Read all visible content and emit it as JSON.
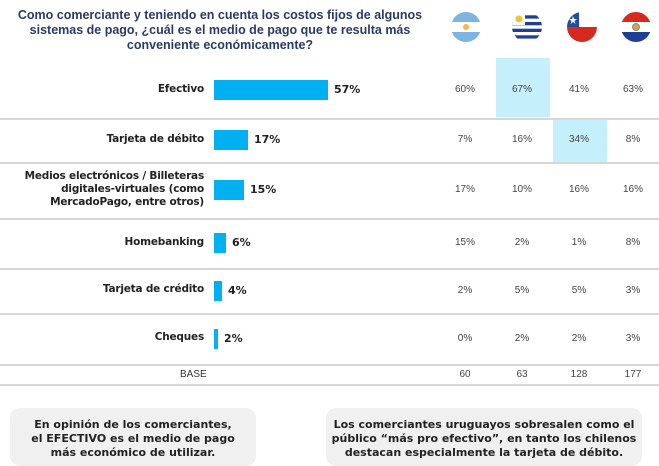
{
  "title": "Como comerciante y teniendo en cuenta los costos fijos de algunos sistemas de pago, ¿cuál es el medio de pago que te resulta       más conveniente económicamente?",
  "title_lines": [
    "Como comerciante y teniendo en cuenta los costos fijos de algunos",
    "sistemas de pago, ¿cuál es el medio de pago que te resulta       más",
    "conveniente económicamente?"
  ],
  "countries": [
    {
      "name": "Argentina",
      "icon": "argentina-flag-icon"
    },
    {
      "name": "Uruguay",
      "icon": "uruguay-flag-icon"
    },
    {
      "name": "Chile",
      "icon": "chile-flag-icon"
    },
    {
      "name": "Paraguay",
      "icon": "paraguay-flag-icon"
    }
  ],
  "colors": {
    "bar": "#00b0f0",
    "highlight": "#c5effb",
    "title": "#2b3a67"
  },
  "chart_data": {
    "type": "bar",
    "orientation": "horizontal",
    "title": "Como comerciante y teniendo en cuenta los costos fijos de algunos sistemas de pago, ¿cuál es el medio de pago que te resulta más conveniente económicamente?",
    "categories": [
      [
        "Efectivo"
      ],
      [
        "Tarjeta de débito"
      ],
      [
        "Medios electrónicos / Billeteras",
        "digitales-virtuales (como",
        "MercadoPago, entre otros)"
      ],
      [
        "Homebanking"
      ],
      [
        "Tarjeta de crédito"
      ],
      [
        "Cheques"
      ]
    ],
    "values": [
      57,
      17,
      15,
      6,
      4,
      2
    ],
    "value_labels": [
      "57%",
      "17%",
      "15%",
      "6%",
      "4%",
      "2%"
    ],
    "xlim": [
      0,
      100
    ],
    "table": {
      "columns": [
        "Argentina",
        "Uruguay",
        "Chile",
        "Paraguay"
      ],
      "rows": [
        [
          "60%",
          "67%",
          "41%",
          "63%"
        ],
        [
          "7%",
          "16%",
          "34%",
          "8%"
        ],
        [
          "17%",
          "10%",
          "16%",
          "16%"
        ],
        [
          "15%",
          "2%",
          "1%",
          "8%"
        ],
        [
          "2%",
          "5%",
          "5%",
          "3%"
        ],
        [
          "0%",
          "2%",
          "2%",
          "3%"
        ]
      ],
      "highlighted": [
        {
          "row": 0,
          "col": 1
        },
        {
          "row": 1,
          "col": 2
        }
      ],
      "base_label": "BASE",
      "base": [
        "60",
        "63",
        "128",
        "177"
      ]
    }
  },
  "notes": [
    [
      "En opinión  de los comerciantes,",
      "el EFECTIVO es el medio de pago",
      "más económico de utilizar."
    ],
    [
      "Los comerciantes uruguayos sobresalen como el",
      "público “más pro efectivo”, en tanto los chilenos",
      "destacan especialmente la tarjeta de débito."
    ]
  ]
}
